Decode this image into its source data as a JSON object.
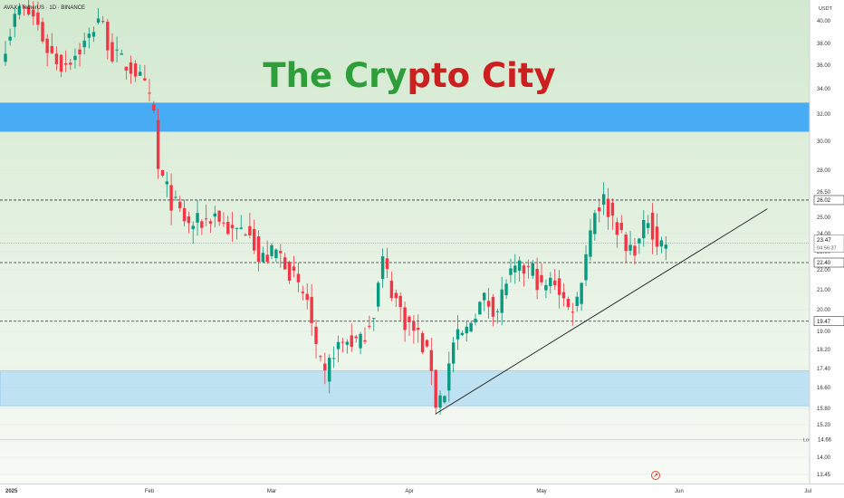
{
  "header": {
    "symbol_line": "AVAX / TetherUS · 1D · BINANCE"
  },
  "watermark": {
    "part1": "The Cry",
    "part2": "pto City",
    "color1": "#2e9e3a",
    "color2": "#cc1f1f"
  },
  "price_axis": {
    "currency": "USDT",
    "ticks": [
      "40.00",
      "38.00",
      "36.00",
      "34.00",
      "32.00",
      "30.00",
      "28.00",
      "26.50",
      "25.00",
      "24.00",
      "23.00",
      "22.00",
      "21.00",
      "20.00",
      "19.00",
      "18.20",
      "17.40",
      "16.60",
      "15.80",
      "15.20",
      "14.60",
      "14.00",
      "13.45"
    ],
    "current_price": "23.47",
    "countdown": "04:56:37",
    "level_labels": [
      {
        "price": 26.02,
        "text": "26.02"
      },
      {
        "price": 22.4,
        "text": "22.40"
      },
      {
        "price": 19.47,
        "text": "19.47"
      }
    ],
    "low_label": "Low",
    "low_value": "14.66"
  },
  "time_axis": {
    "labels": [
      "2025",
      "Feb",
      "Mar",
      "Apr",
      "May",
      "Jun",
      "Jul"
    ]
  },
  "colors": {
    "up": "#089981",
    "down": "#f23645",
    "zone_strong": "#3fa9f5",
    "zone_light": "#9fd3f5",
    "trendline": "#222222",
    "level_line": "#333333",
    "grid": "#dfe6df"
  },
  "zones": [
    {
      "from": 30.7,
      "to": 32.9,
      "style": "strong"
    },
    {
      "from": 15.9,
      "to": 17.3,
      "style": "light"
    }
  ],
  "chart_data": {
    "type": "candlestick",
    "title": "AVAX / TetherUS · 1D · BINANCE",
    "x_range": [
      "2025-01-01",
      "2025-07-01"
    ],
    "y_scale": "log",
    "ylim": [
      13.2,
      42.5
    ],
    "horizontal_levels": [
      26.02,
      22.4,
      19.47
    ],
    "low": 14.66,
    "current": 23.47,
    "trendline": {
      "from": [
        "2025-04-07",
        15.6
      ],
      "to": [
        "2025-06-21",
        25.5
      ]
    },
    "anchors": [
      [
        "2025-01-01",
        38.0
      ],
      [
        "2025-01-04",
        41.5
      ],
      [
        "2025-01-07",
        40.5
      ],
      [
        "2025-01-10",
        37.5
      ],
      [
        "2025-01-13",
        36.0
      ],
      [
        "2025-01-16",
        37.0
      ],
      [
        "2025-01-19",
        38.5
      ],
      [
        "2025-01-21",
        40.5
      ],
      [
        "2025-01-24",
        37.0
      ],
      [
        "2025-01-27",
        36.0
      ],
      [
        "2025-01-29",
        35.5
      ],
      [
        "2025-01-31",
        34.0
      ],
      [
        "2025-02-02",
        32.0
      ],
      [
        "2025-02-03",
        28.0
      ],
      [
        "2025-02-06",
        26.0
      ],
      [
        "2025-02-10",
        24.5
      ],
      [
        "2025-02-14",
        24.8
      ],
      [
        "2025-02-16",
        25.2
      ],
      [
        "2025-02-20",
        24.0
      ],
      [
        "2025-02-24",
        24.5
      ],
      [
        "2025-02-26",
        22.5
      ],
      [
        "2025-03-02",
        23.0
      ],
      [
        "2025-03-04",
        22.5
      ],
      [
        "2025-03-07",
        21.0
      ],
      [
        "2025-03-09",
        20.5
      ],
      [
        "2025-03-11",
        18.0
      ],
      [
        "2025-03-13",
        17.0
      ],
      [
        "2025-03-15",
        18.2
      ],
      [
        "2025-03-18",
        18.6
      ],
      [
        "2025-03-21",
        18.5
      ],
      [
        "2025-03-24",
        20.0
      ],
      [
        "2025-03-26",
        22.5
      ],
      [
        "2025-03-28",
        21.0
      ],
      [
        "2025-03-31",
        19.5
      ],
      [
        "2025-04-03",
        18.8
      ],
      [
        "2025-04-06",
        17.5
      ],
      [
        "2025-04-07",
        16.0
      ],
      [
        "2025-04-09",
        16.5
      ],
      [
        "2025-04-11",
        18.5
      ],
      [
        "2025-04-14",
        19.0
      ],
      [
        "2025-04-16",
        20.0
      ],
      [
        "2025-04-18",
        20.5
      ],
      [
        "2025-04-21",
        20.0
      ],
      [
        "2025-04-23",
        21.5
      ],
      [
        "2025-04-26",
        22.0
      ],
      [
        "2025-04-29",
        22.0
      ],
      [
        "2025-05-01",
        21.0
      ],
      [
        "2025-05-04",
        21.5
      ],
      [
        "2025-05-07",
        20.0
      ],
      [
        "2025-05-09",
        20.5
      ],
      [
        "2025-05-11",
        23.0
      ],
      [
        "2025-05-13",
        25.5
      ],
      [
        "2025-05-15",
        26.0
      ],
      [
        "2025-05-18",
        24.5
      ],
      [
        "2025-05-20",
        23.0
      ],
      [
        "2025-05-23",
        23.5
      ],
      [
        "2025-05-25",
        25.0
      ],
      [
        "2025-05-27",
        23.5
      ],
      [
        "2025-05-29",
        23.47
      ]
    ]
  }
}
